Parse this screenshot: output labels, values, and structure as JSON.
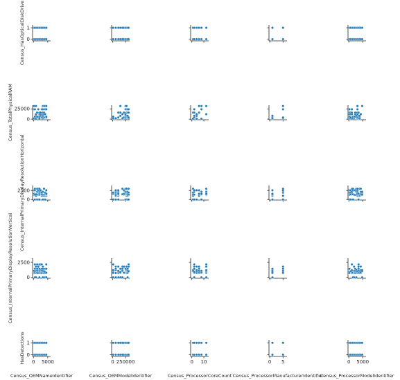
{
  "chart_data": {
    "type": "scatter",
    "title": "",
    "point_color": "#1f77b4",
    "x_variables": [
      "Census_OEMNameIdentifier",
      "Census_OEMModelIdentifier",
      "Census_ProcessorCoreCount",
      "Census_ProcessorManufacturerIdentifier",
      "Census_ProcessorModelIdentifier"
    ],
    "y_variables": [
      "Census_HasOpticalDiskDrive",
      "Census_TotalPhysicalRAM",
      "Census_InternalPrimaryDisplayResolutionHorizontal",
      "Census_InternalPrimaryDisplayResolutionVertical",
      "HasDetections"
    ],
    "x_ticks": [
      {
        "values": [
          0,
          5000
        ],
        "labels": [
          "0",
          "5000"
        ]
      },
      {
        "values": [
          0,
          250000
        ],
        "labels": [
          "0",
          "250000"
        ]
      },
      {
        "values": [
          0,
          10
        ],
        "labels": [
          "0",
          "10"
        ]
      },
      {
        "values": [
          0,
          5
        ],
        "labels": [
          "0",
          "5"
        ]
      },
      {
        "values": [
          0,
          5000
        ],
        "labels": [
          "0",
          "5000"
        ]
      }
    ],
    "y_ticks": [
      {
        "values": [
          0,
          1
        ],
        "labels": [
          "0",
          "1"
        ]
      },
      {
        "values": [
          0,
          25000
        ],
        "labels": [
          "0",
          "25000"
        ]
      },
      {
        "values": [
          0,
          2500
        ],
        "labels": [
          "0",
          "2500"
        ]
      },
      {
        "values": [
          0,
          2500
        ],
        "labels": [
          "0",
          "2500"
        ]
      },
      {
        "values": [
          0,
          1
        ],
        "labels": [
          "0",
          "1"
        ]
      }
    ],
    "x_ranges": [
      [
        -300,
        6000
      ],
      [
        -20000,
        330000
      ],
      [
        -1,
        14
      ],
      [
        -0.3,
        6.5
      ],
      [
        -300,
        6200
      ]
    ],
    "y_ranges": [
      [
        -0.15,
        1.25
      ],
      [
        -1500,
        34000
      ],
      [
        -150,
        3900
      ],
      [
        -150,
        3200
      ],
      [
        -0.15,
        1.25
      ]
    ],
    "x_samples": [
      [
        200,
        500,
        900,
        1300,
        1700,
        2100,
        2500,
        2900,
        3300,
        3700,
        4100,
        4500
      ],
      [
        10000,
        60000,
        110000,
        150000,
        190000,
        220000,
        250000,
        270000,
        290000,
        310000
      ],
      [
        1,
        2,
        4,
        6,
        8,
        12
      ],
      [
        1,
        5
      ],
      [
        200,
        700,
        1100,
        1500,
        1900,
        2300,
        2700,
        3100,
        3500,
        3900,
        4300,
        4800
      ]
    ],
    "y_samples": [
      [
        0,
        1
      ],
      [
        1000,
        2000,
        4000,
        6000,
        8000,
        12000,
        16000,
        24000,
        32000
      ],
      [
        0,
        1024,
        1280,
        1366,
        1440,
        1600,
        1920,
        2160,
        2560,
        3000
      ],
      [
        0,
        720,
        768,
        900,
        1024,
        1080,
        1200,
        1440,
        1800,
        2160
      ],
      [
        0,
        1
      ]
    ]
  }
}
